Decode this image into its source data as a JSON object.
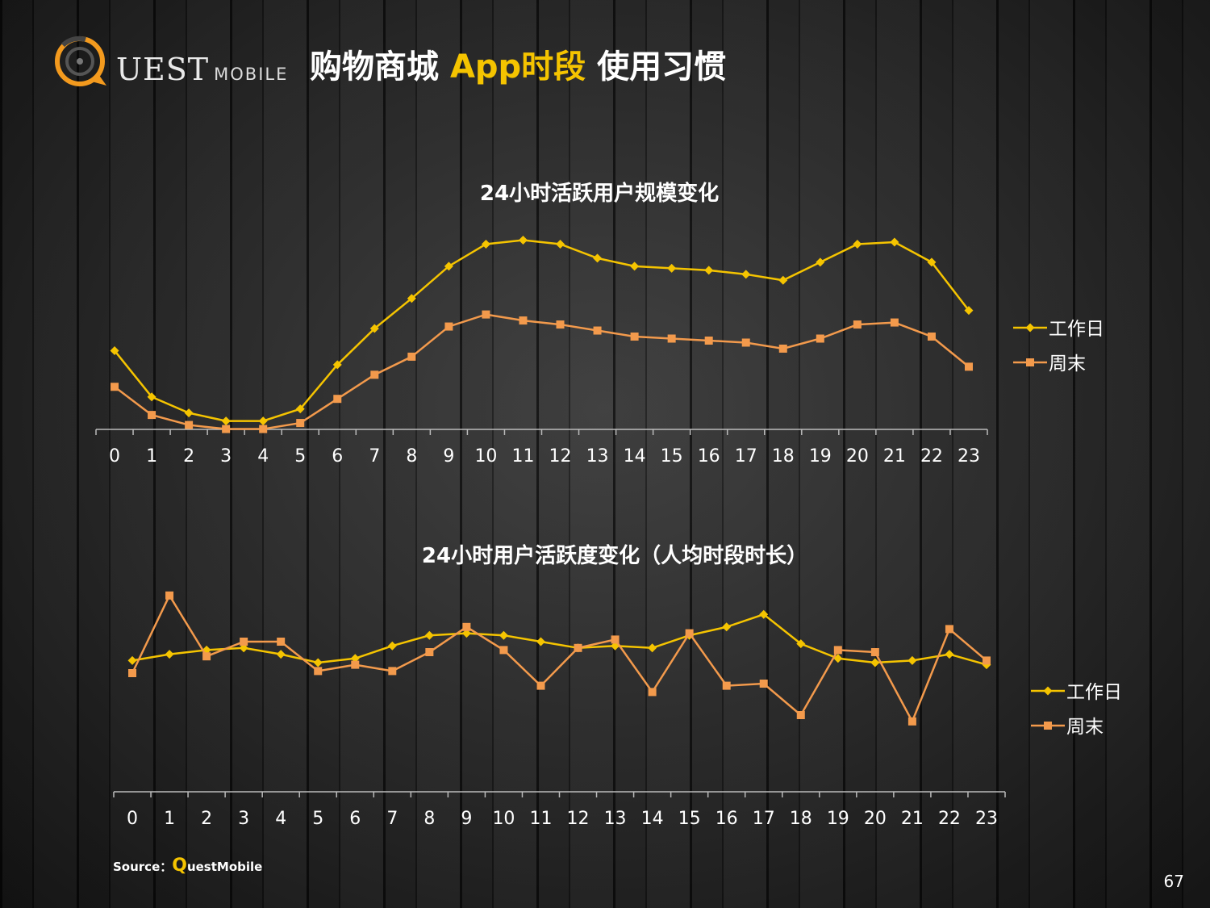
{
  "header": {
    "logo_main": "UEST",
    "logo_sub": "MOBILE",
    "title_part1": "购物商城 ",
    "title_highlight": "App时段",
    "title_part2": " 使用习惯"
  },
  "colors": {
    "weekday": "#f5c400",
    "weekend": "#f39a4c",
    "title_highlight": "#f5c400"
  },
  "chart_data": [
    {
      "type": "line",
      "title": "24小时活跃用户规模变化",
      "categories": [
        "0",
        "1",
        "2",
        "3",
        "4",
        "5",
        "6",
        "7",
        "8",
        "9",
        "10",
        "11",
        "12",
        "13",
        "14",
        "15",
        "16",
        "17",
        "18",
        "19",
        "20",
        "21",
        "22",
        "23"
      ],
      "ylim": [
        0,
        100
      ],
      "legend": "right",
      "series": [
        {
          "name": "工作日",
          "marker": "diamond",
          "values": [
            44,
            21,
            13,
            9,
            9,
            15,
            37,
            55,
            70,
            86,
            97,
            99,
            97,
            90,
            86,
            85,
            84,
            82,
            79,
            88,
            97,
            98,
            88,
            64
          ]
        },
        {
          "name": "周末",
          "marker": "square",
          "values": [
            26,
            12,
            7,
            5,
            5,
            8,
            20,
            32,
            41,
            56,
            62,
            59,
            57,
            54,
            51,
            50,
            49,
            48,
            45,
            50,
            57,
            58,
            51,
            36
          ]
        }
      ]
    },
    {
      "type": "line",
      "title": "24小时用户活跃度变化（人均时段时长）",
      "categories": [
        "0",
        "1",
        "2",
        "3",
        "4",
        "5",
        "6",
        "7",
        "8",
        "9",
        "10",
        "11",
        "12",
        "13",
        "14",
        "15",
        "16",
        "17",
        "18",
        "19",
        "20",
        "21",
        "22",
        "23"
      ],
      "ylim": [
        0,
        100
      ],
      "legend": "right",
      "series": [
        {
          "name": "工作日",
          "marker": "diamond",
          "values": [
            66,
            69,
            71,
            72,
            69,
            65,
            67,
            73,
            78,
            79,
            78,
            75,
            72,
            73,
            72,
            78,
            82,
            88,
            74,
            67,
            65,
            66,
            69,
            64
          ]
        },
        {
          "name": "周末",
          "marker": "square",
          "values": [
            60,
            97,
            68,
            75,
            75,
            61,
            64,
            61,
            70,
            82,
            71,
            54,
            72,
            76,
            51,
            79,
            54,
            55,
            40,
            71,
            70,
            37,
            81,
            66
          ]
        }
      ]
    }
  ],
  "footer": {
    "source_label": "Source：",
    "source_q": "Q",
    "source_rest": "uestMobile",
    "page_number": "67"
  }
}
